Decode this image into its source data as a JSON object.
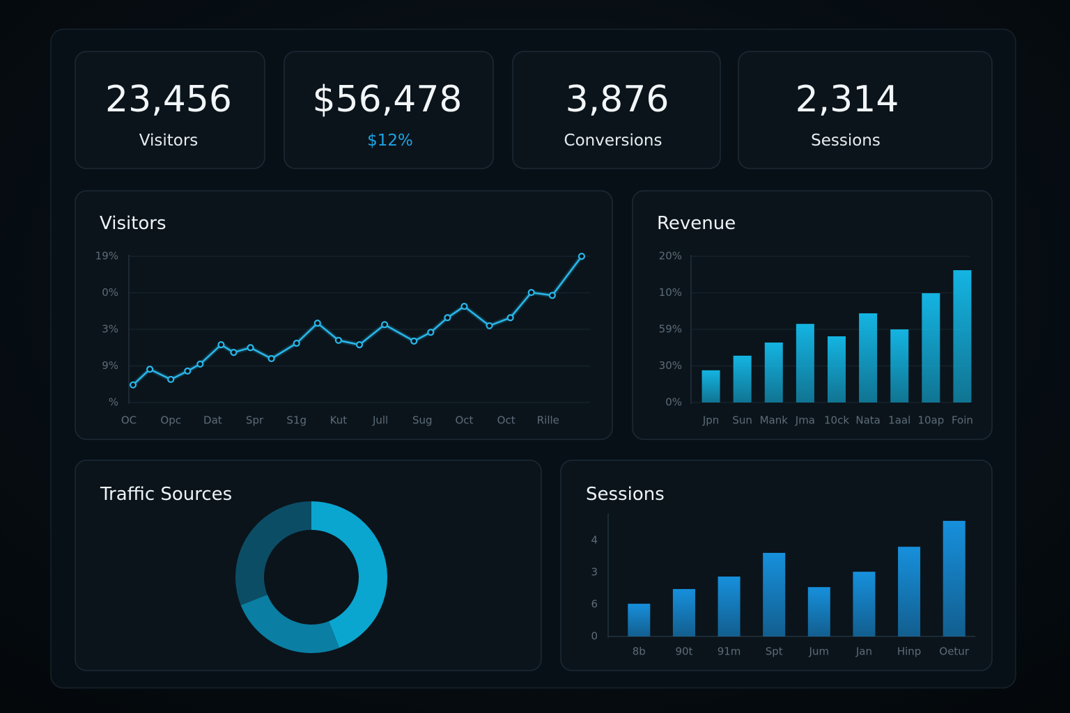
{
  "kpis": [
    {
      "value": "23,456",
      "label": "Visitors"
    },
    {
      "value": "$56,478",
      "label": "$12%"
    },
    {
      "value": "3,876",
      "label": "Conversions"
    },
    {
      "value": "2,314",
      "label": "Sessions"
    }
  ],
  "chart_data": [
    {
      "type": "line",
      "title": "Visitors",
      "color": "#29b6e8",
      "grid": true,
      "x": [
        0.1,
        0.5,
        1.0,
        1.4,
        1.7,
        2.2,
        2.5,
        2.9,
        3.4,
        4.0,
        4.5,
        5.0,
        5.5,
        6.1,
        6.8,
        7.2,
        7.6,
        8.0,
        8.6,
        9.1,
        9.6,
        10.1,
        10.8
      ],
      "values": [
        0.48,
        0.91,
        0.63,
        0.86,
        1.05,
        1.58,
        1.37,
        1.5,
        1.2,
        1.62,
        2.17,
        1.7,
        1.58,
        2.13,
        1.68,
        1.92,
        2.32,
        2.63,
        2.1,
        2.32,
        3.01,
        2.93,
        4.0
      ],
      "xlim": [
        0,
        11
      ],
      "xticks": [
        {
          "value": 0,
          "label": "OC"
        },
        {
          "value": 1,
          "label": "Opc"
        },
        {
          "value": 2,
          "label": "Dat"
        },
        {
          "value": 3,
          "label": "Spr"
        },
        {
          "value": 4,
          "label": "S1g"
        },
        {
          "value": 5,
          "label": "Kut"
        },
        {
          "value": 6,
          "label": "Jull"
        },
        {
          "value": 7,
          "label": "Sug"
        },
        {
          "value": 8,
          "label": "Oct"
        },
        {
          "value": 9,
          "label": "Oct"
        },
        {
          "value": 10,
          "label": "Rille"
        }
      ],
      "ylim": [
        0,
        4.04
      ],
      "yticks": [
        {
          "value": 0,
          "label": "%"
        },
        {
          "value": 1,
          "label": "9%"
        },
        {
          "value": 2,
          "label": "3%"
        },
        {
          "value": 3,
          "label": "0%"
        },
        {
          "value": 4,
          "label": "19%"
        }
      ]
    },
    {
      "type": "bar",
      "title": "Revenue",
      "color": "#14b4e2",
      "grid": true,
      "categories": [
        "Jpn",
        "Sun",
        "Mank",
        "Jma",
        "10ck",
        "Nata",
        "1aal",
        "10ap",
        "Foin"
      ],
      "values": [
        0.88,
        1.28,
        1.64,
        2.15,
        1.81,
        2.44,
        2.0,
        2.99,
        3.62
      ],
      "ylim": [
        0,
        4.04
      ],
      "yticks": [
        {
          "value": 0,
          "label": "0%"
        },
        {
          "value": 1,
          "label": "30%"
        },
        {
          "value": 2,
          "label": "59%"
        },
        {
          "value": 3,
          "label": "10%"
        },
        {
          "value": 4,
          "label": "20%"
        }
      ]
    },
    {
      "type": "donut",
      "title": "Traffic Sources",
      "values": [
        44,
        25,
        31
      ],
      "colors": [
        "#0aa6cf",
        "#0a7ea3",
        "#0c4d66"
      ]
    },
    {
      "type": "bar",
      "title": "Sessions",
      "color": "#1790dc",
      "grid": false,
      "categories": [
        "8b",
        "90t",
        "91m",
        "Spt",
        "Jum",
        "Jan",
        "Hinp",
        "Oetur"
      ],
      "values": [
        1.02,
        1.48,
        1.87,
        2.61,
        1.54,
        2.02,
        2.8,
        3.61
      ],
      "ylim": [
        0,
        3.85
      ],
      "yticks": [
        0,
        {
          "value": 1,
          "label": "6"
        },
        {
          "value": 2,
          "label": "3"
        },
        {
          "value": 3,
          "label": "4"
        }
      ]
    }
  ]
}
